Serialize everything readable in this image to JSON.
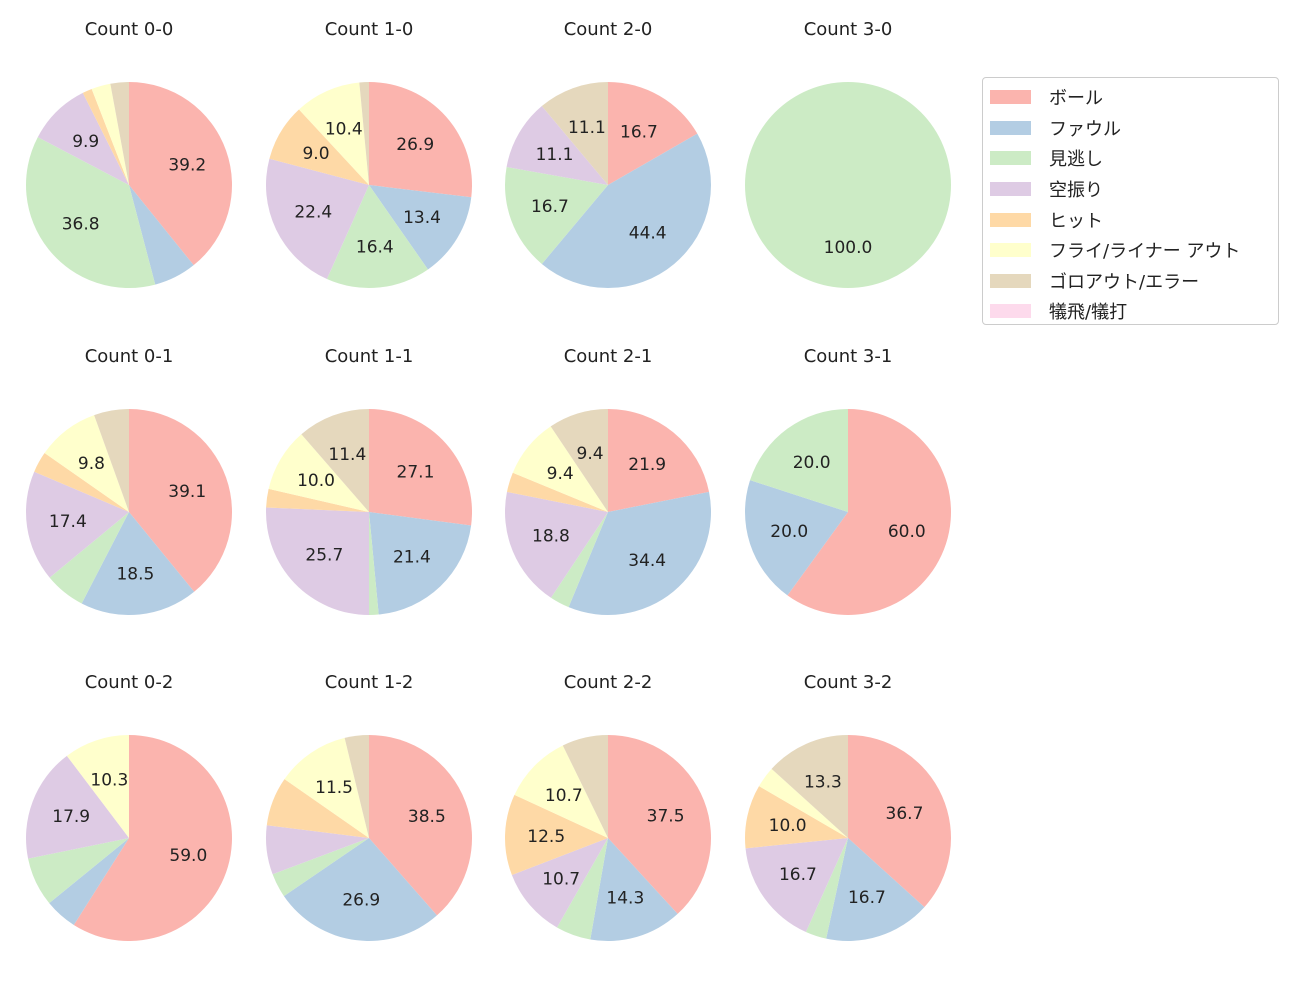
{
  "chart_data": {
    "type": "pie",
    "legend": {
      "placement": "right",
      "labels": [
        "ボール",
        "ファウル",
        "見逃し",
        "空振り",
        "ヒット",
        "フライ/ライナー アウト",
        "ゴロアウト/エラー",
        "犠飛/犠打"
      ]
    },
    "colors": [
      "#fbb4ae",
      "#b3cde3",
      "#ccebc5",
      "#decbe4",
      "#fed9a6",
      "#ffffcc",
      "#e5d8bd",
      "#fddaec"
    ],
    "label_min_pct": 8,
    "charts": [
      {
        "title": "Count 0-0",
        "values": [
          39.2,
          6.7,
          36.8,
          9.9,
          1.5,
          3.0,
          2.9,
          0
        ]
      },
      {
        "title": "Count 1-0",
        "values": [
          26.9,
          13.4,
          16.4,
          22.4,
          9.0,
          10.4,
          1.5,
          0
        ]
      },
      {
        "title": "Count 2-0",
        "values": [
          16.7,
          44.4,
          16.7,
          11.1,
          0,
          0,
          11.1,
          0
        ]
      },
      {
        "title": "Count 3-0",
        "values": [
          0,
          0,
          100.0,
          0,
          0,
          0,
          0,
          0
        ]
      },
      {
        "title": "Count 0-1",
        "values": [
          39.1,
          18.5,
          6.4,
          17.4,
          3.3,
          9.8,
          5.5,
          0
        ]
      },
      {
        "title": "Count 1-1",
        "values": [
          27.1,
          21.4,
          1.5,
          25.7,
          2.9,
          10.0,
          11.4,
          0
        ]
      },
      {
        "title": "Count 2-1",
        "values": [
          21.9,
          34.4,
          3.1,
          18.8,
          3.1,
          9.4,
          9.4,
          0
        ]
      },
      {
        "title": "Count 3-1",
        "values": [
          60.0,
          20.0,
          20.0,
          0,
          0,
          0,
          0,
          0
        ]
      },
      {
        "title": "Count 0-2",
        "values": [
          59.0,
          5.1,
          7.7,
          17.9,
          0,
          10.3,
          0,
          0
        ]
      },
      {
        "title": "Count 1-2",
        "values": [
          38.5,
          26.9,
          3.8,
          7.7,
          7.7,
          11.5,
          3.8,
          0
        ]
      },
      {
        "title": "Count 2-2",
        "values": [
          37.5,
          14.3,
          5.4,
          10.7,
          12.5,
          10.7,
          7.1,
          0
        ]
      },
      {
        "title": "Count 3-2",
        "values": [
          36.7,
          16.7,
          3.3,
          16.7,
          10.0,
          3.3,
          13.3,
          0
        ]
      }
    ]
  }
}
